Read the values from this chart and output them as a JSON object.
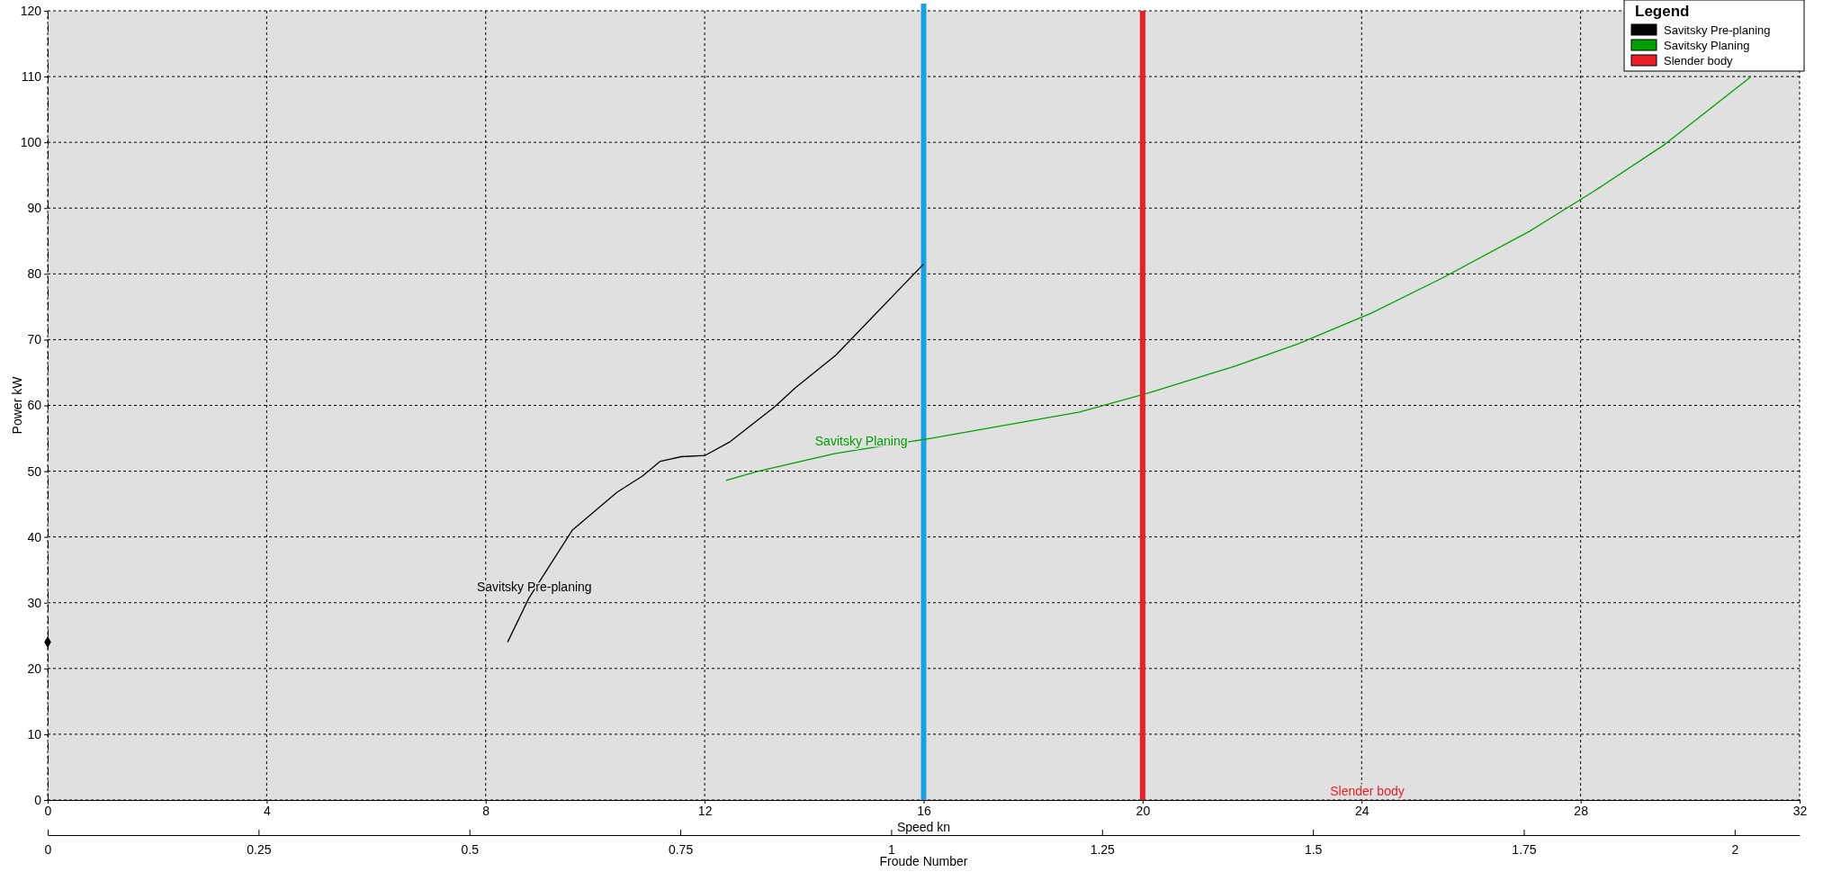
{
  "chart_data": {
    "type": "line",
    "xlabel": "Speed  kn",
    "ylabel": "Power  kW",
    "x2label": "Froude Number",
    "legend_title": "Legend",
    "xlim": [
      0,
      32
    ],
    "xticks": [
      0,
      4,
      8,
      12,
      16,
      20,
      24,
      28,
      32
    ],
    "ylim": [
      0,
      120
    ],
    "yticks": [
      0,
      10,
      20,
      30,
      40,
      50,
      60,
      70,
      80,
      90,
      100,
      110,
      120
    ],
    "x2lim": [
      0,
      2.077
    ],
    "x2ticks": [
      0,
      0.25,
      0.5,
      0.75,
      1,
      1.25,
      1.5,
      1.75,
      2
    ],
    "grid": true,
    "legend": "top right",
    "marker": "none",
    "series": [
      {
        "name": "Savitsky Pre-planing",
        "color": "#000000",
        "x": [
          8.4,
          8.79,
          9.58,
          10.4,
          10.87,
          11.19,
          11.57,
          12.01,
          12.45,
          13.28,
          13.66,
          14.39,
          14.98,
          16.0
        ],
        "values": [
          24.0,
          30.7,
          41.0,
          46.8,
          49.3,
          51.5,
          52.2,
          52.4,
          54.4,
          59.8,
          62.7,
          67.6,
          72.7,
          81.5
        ]
      },
      {
        "name": "Savitsky Planing",
        "color": "#00a000",
        "x": [
          12.39,
          12.98,
          14.39,
          16.06,
          18.85,
          20.11,
          21.7,
          22.85,
          24.17,
          25.48,
          27.07,
          28.25,
          29.54,
          31.1
        ],
        "values": [
          48.6,
          50.0,
          52.7,
          54.9,
          59.0,
          61.9,
          66.0,
          69.4,
          74.0,
          79.4,
          86.5,
          92.6,
          99.7,
          109.9
        ]
      },
      {
        "name": "Slender body",
        "color": "#e8202a",
        "x": [
          20,
          20
        ],
        "values": [
          0,
          120
        ]
      },
      {
        "type": "scatter",
        "marker": "diamond",
        "color": "#000000",
        "x": [
          0
        ],
        "values": [
          24
        ]
      }
    ],
    "ref_lines": [
      {
        "axis": "x",
        "value": 16,
        "color": "#1ba1e2"
      }
    ],
    "annotations": [
      "Savitsky Pre-planing",
      "Savitsky Planing",
      "Slender body"
    ]
  }
}
